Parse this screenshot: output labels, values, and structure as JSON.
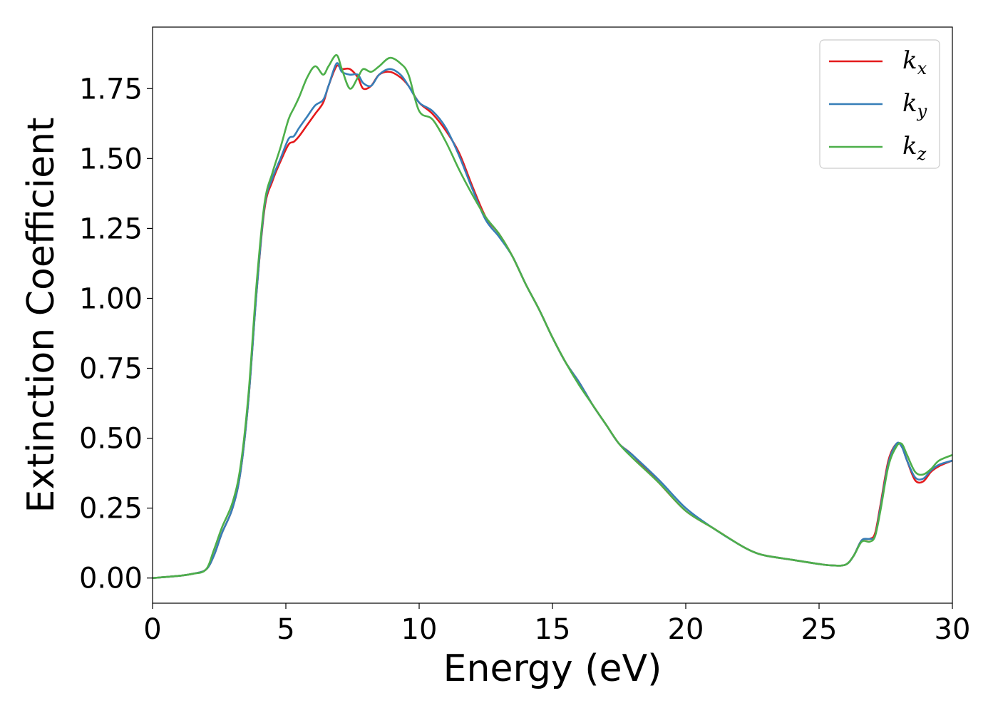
{
  "chart_data": {
    "type": "line",
    "xlabel": "Energy (eV)",
    "ylabel": "Extinction Coefficient",
    "xlim": [
      0,
      30
    ],
    "ylim": [
      -0.09,
      1.97
    ],
    "xticks": [
      0,
      5,
      10,
      15,
      20,
      25,
      30
    ],
    "yticks": [
      0.0,
      0.25,
      0.5,
      0.75,
      1.0,
      1.25,
      1.5,
      1.75
    ],
    "xtick_labels": [
      "0",
      "5",
      "10",
      "15",
      "20",
      "25",
      "30"
    ],
    "ytick_labels": [
      "0.00",
      "0.25",
      "0.50",
      "0.75",
      "1.00",
      "1.25",
      "1.50",
      "1.75"
    ],
    "grid": false,
    "legend_position": "top-right",
    "series": [
      {
        "name": "k",
        "subscript": "x",
        "color": "#e41a1c",
        "x": [
          0,
          1,
          1.5,
          2,
          2.3,
          2.6,
          3,
          3.3,
          3.6,
          3.9,
          4.2,
          4.5,
          4.8,
          5.1,
          5.3,
          5.5,
          5.8,
          6.1,
          6.4,
          6.6,
          6.9,
          7.1,
          7.4,
          7.7,
          7.9,
          8.2,
          8.5,
          8.9,
          9.3,
          9.6,
          10,
          10.5,
          11,
          11.5,
          12,
          12.5,
          13,
          13.5,
          14,
          14.5,
          15,
          15.5,
          16,
          16.5,
          17,
          17.5,
          18,
          19,
          20,
          21,
          22,
          22.5,
          23,
          24,
          25,
          25.5,
          26,
          26.3,
          26.6,
          26.9,
          27.1,
          27.3,
          27.6,
          27.9,
          28.1,
          28.3,
          28.6,
          28.9,
          29.2,
          29.5,
          30
        ],
        "values": [
          0.0,
          0.008,
          0.015,
          0.03,
          0.08,
          0.16,
          0.25,
          0.38,
          0.64,
          1.02,
          1.32,
          1.42,
          1.49,
          1.55,
          1.56,
          1.58,
          1.62,
          1.66,
          1.7,
          1.76,
          1.83,
          1.82,
          1.82,
          1.79,
          1.75,
          1.76,
          1.8,
          1.81,
          1.79,
          1.76,
          1.7,
          1.66,
          1.6,
          1.52,
          1.4,
          1.29,
          1.23,
          1.15,
          1.05,
          0.96,
          0.86,
          0.77,
          0.7,
          0.62,
          0.55,
          0.48,
          0.44,
          0.34,
          0.24,
          0.18,
          0.12,
          0.095,
          0.08,
          0.065,
          0.05,
          0.045,
          0.048,
          0.08,
          0.135,
          0.14,
          0.16,
          0.26,
          0.42,
          0.48,
          0.47,
          0.42,
          0.35,
          0.345,
          0.38,
          0.4,
          0.42
        ]
      },
      {
        "name": "k",
        "subscript": "y",
        "color": "#377eb8",
        "x": [
          0,
          1,
          1.5,
          2,
          2.3,
          2.6,
          3,
          3.3,
          3.6,
          3.9,
          4.2,
          4.5,
          4.8,
          5.1,
          5.3,
          5.5,
          5.8,
          6.1,
          6.4,
          6.6,
          6.9,
          7.1,
          7.4,
          7.7,
          7.9,
          8.2,
          8.5,
          8.9,
          9.3,
          9.6,
          10,
          10.5,
          11,
          11.5,
          12,
          12.5,
          13,
          13.5,
          14,
          14.5,
          15,
          15.5,
          16,
          16.5,
          17,
          17.5,
          18,
          19,
          20,
          21,
          22,
          22.5,
          23,
          24,
          25,
          25.5,
          26,
          26.3,
          26.6,
          26.9,
          27.1,
          27.3,
          27.6,
          27.9,
          28.1,
          28.3,
          28.6,
          28.9,
          29.2,
          29.5,
          30
        ],
        "values": [
          0.0,
          0.008,
          0.015,
          0.03,
          0.08,
          0.16,
          0.25,
          0.38,
          0.64,
          1.02,
          1.33,
          1.43,
          1.5,
          1.57,
          1.58,
          1.61,
          1.65,
          1.69,
          1.71,
          1.76,
          1.84,
          1.81,
          1.8,
          1.8,
          1.77,
          1.76,
          1.8,
          1.82,
          1.8,
          1.76,
          1.7,
          1.67,
          1.61,
          1.51,
          1.39,
          1.28,
          1.22,
          1.15,
          1.05,
          0.96,
          0.86,
          0.77,
          0.7,
          0.62,
          0.55,
          0.48,
          0.44,
          0.35,
          0.25,
          0.18,
          0.12,
          0.095,
          0.08,
          0.065,
          0.05,
          0.045,
          0.048,
          0.08,
          0.135,
          0.14,
          0.15,
          0.25,
          0.41,
          0.48,
          0.47,
          0.42,
          0.36,
          0.355,
          0.385,
          0.405,
          0.42
        ]
      },
      {
        "name": "k",
        "subscript": "z",
        "color": "#4daf4a",
        "x": [
          0,
          1,
          1.5,
          2,
          2.3,
          2.6,
          3,
          3.3,
          3.6,
          3.9,
          4.2,
          4.5,
          4.8,
          5.1,
          5.3,
          5.5,
          5.8,
          6.1,
          6.4,
          6.6,
          6.9,
          7.1,
          7.4,
          7.7,
          7.9,
          8.2,
          8.5,
          8.9,
          9.3,
          9.6,
          10,
          10.5,
          11,
          11.5,
          12,
          12.5,
          13,
          13.5,
          14,
          14.5,
          15,
          15.5,
          16,
          16.5,
          17,
          17.5,
          18,
          19,
          20,
          21,
          22,
          22.5,
          23,
          24,
          25,
          25.5,
          26,
          26.3,
          26.6,
          26.9,
          27.1,
          27.3,
          27.6,
          27.9,
          28.1,
          28.3,
          28.6,
          28.9,
          29.2,
          29.5,
          30
        ],
        "values": [
          0.0,
          0.008,
          0.015,
          0.03,
          0.1,
          0.18,
          0.27,
          0.4,
          0.66,
          1.05,
          1.34,
          1.45,
          1.54,
          1.64,
          1.68,
          1.72,
          1.79,
          1.83,
          1.8,
          1.83,
          1.87,
          1.82,
          1.75,
          1.79,
          1.82,
          1.81,
          1.83,
          1.86,
          1.84,
          1.8,
          1.67,
          1.64,
          1.56,
          1.46,
          1.37,
          1.29,
          1.23,
          1.15,
          1.05,
          0.96,
          0.86,
          0.77,
          0.69,
          0.62,
          0.55,
          0.48,
          0.43,
          0.34,
          0.24,
          0.18,
          0.12,
          0.095,
          0.08,
          0.065,
          0.05,
          0.045,
          0.048,
          0.08,
          0.13,
          0.13,
          0.15,
          0.24,
          0.4,
          0.47,
          0.48,
          0.44,
          0.38,
          0.37,
          0.39,
          0.42,
          0.44
        ]
      }
    ]
  }
}
